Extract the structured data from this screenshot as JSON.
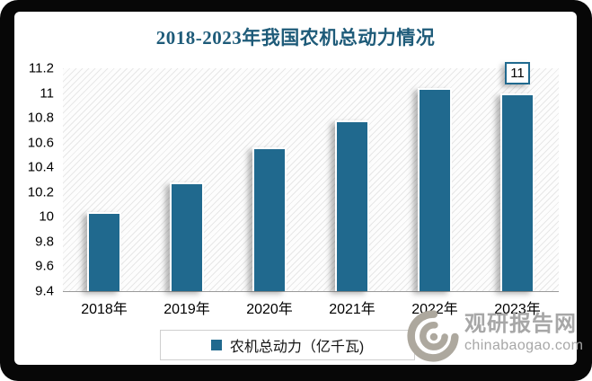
{
  "chart_data": {
    "type": "bar",
    "title": "2018-2023年我国农机总动力情况",
    "categories": [
      "2018年",
      "2019年",
      "2020年",
      "2021年",
      "2022年",
      "2023年"
    ],
    "series": [
      {
        "name": "农机总动力（亿千瓦)",
        "values": [
          10.04,
          10.28,
          10.56,
          10.78,
          11.04,
          11
        ]
      }
    ],
    "ylim": [
      9.4,
      11.2
    ],
    "ytick_step": 0.2,
    "ytick_labels": [
      "11.2",
      "11",
      "10.8",
      "10.6",
      "10.4",
      "10.2",
      "10",
      "9.8",
      "9.6",
      "9.4"
    ],
    "grid": false,
    "plot_background": "light-diagonal-hatch",
    "legend_position": "bottom",
    "annotations": [
      {
        "category": "2023年",
        "value": 11,
        "text": "11"
      }
    ]
  },
  "legend": {
    "label": "农机总动力（亿千瓦)"
  },
  "watermark": {
    "brand": "观研报告网",
    "domain": "chinabaogao.com",
    "icon": "swirl-eye-logo"
  },
  "colors": {
    "bar": "#20698E",
    "title": "#1E5B79",
    "tick_text": "#000000",
    "axis_line": "#9A9A9A",
    "watermark_gray": "#A7A7A7",
    "frame_black": "#070707",
    "annotation_border": "#20698E"
  }
}
